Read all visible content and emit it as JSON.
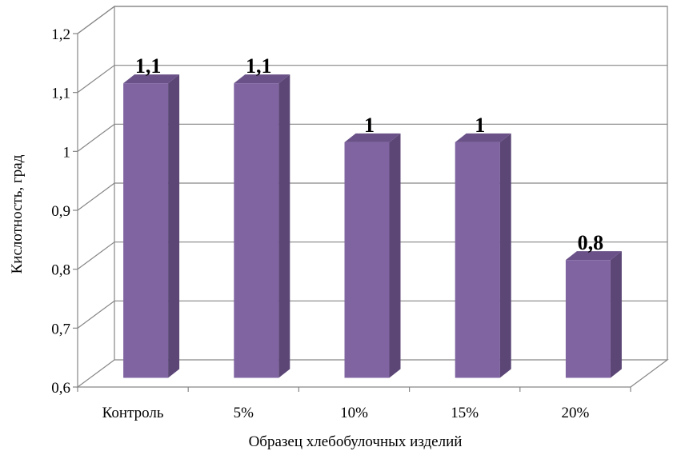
{
  "chart_data": {
    "type": "bar",
    "title": "",
    "xlabel": "Образец хлебобулочных изделий",
    "ylabel": "Кислотность, град",
    "categories": [
      "Контроль",
      "5%",
      "10%",
      "15%",
      "20%"
    ],
    "values": [
      1.1,
      1.1,
      1.0,
      1.0,
      0.8
    ],
    "value_labels": [
      "1,1",
      "1,1",
      "1",
      "1",
      "0,8"
    ],
    "yticks": [
      0.6,
      0.7,
      0.8,
      0.9,
      1.0,
      1.1,
      1.2
    ],
    "ytick_labels": [
      "0,6",
      "0,7",
      "0,8",
      "0,9",
      "1",
      "1,1",
      "1,2"
    ],
    "ylim": [
      0.6,
      1.2
    ],
    "grid": true,
    "legend": "none",
    "style": "3d-column",
    "colors": {
      "bar_front": "#8064A2",
      "bar_side": "#5B4676",
      "bar_top": "#6A5288",
      "grid": "#868686",
      "axis": "#868686"
    }
  }
}
